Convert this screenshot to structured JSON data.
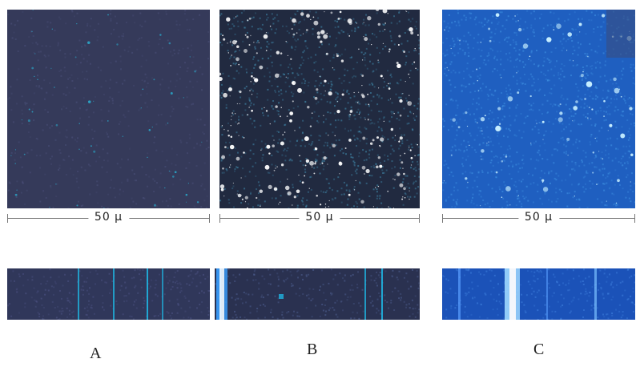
{
  "panels": [
    {
      "id": "A",
      "scale_label": "50 μ",
      "caption": "A",
      "bg": "#353a5a",
      "star_color": "#2aa6c8",
      "density": "low"
    },
    {
      "id": "B",
      "scale_label": "50 μ",
      "caption": "B",
      "bg": "#212a40",
      "star_color": "#ffffff",
      "density": "high"
    },
    {
      "id": "C",
      "scale_label": "50 μ",
      "caption": "C",
      "bg": "#1f5fc0",
      "star_color": "#c8f0ff",
      "density": "medium"
    }
  ],
  "colors": {
    "page_bg": "#ffffff",
    "strip_a_bg": "#30375a",
    "strip_b_bg": "#2a3150",
    "strip_c_bg": "#1b52b8",
    "streak_cyan": "#1fb4e0"
  }
}
